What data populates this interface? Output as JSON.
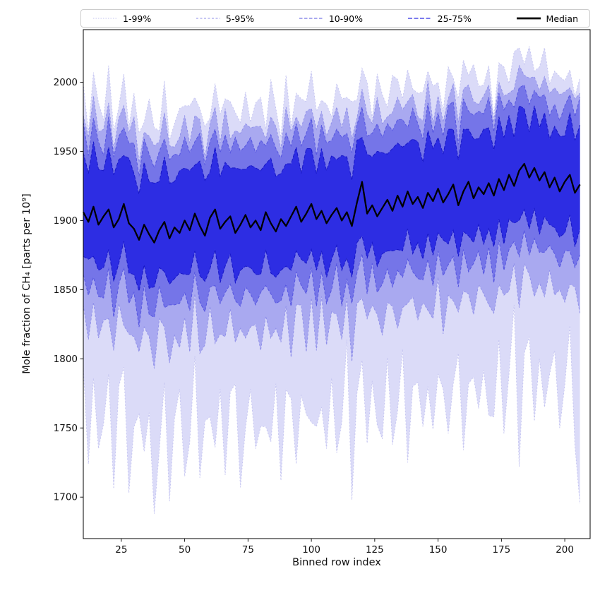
{
  "chart_data": {
    "type": "area",
    "title": "",
    "xlabel": "Binned row index",
    "ylabel": "Mole fraction of CH₄ [parts per 10⁹]",
    "xlim": [
      10,
      210
    ],
    "ylim": [
      1670,
      2038
    ],
    "x_ticks": [
      25,
      50,
      75,
      100,
      125,
      150,
      175,
      200
    ],
    "y_ticks": [
      1700,
      1750,
      1800,
      1850,
      1900,
      1950,
      2000
    ],
    "grid": false,
    "legend": {
      "position": "top",
      "items": [
        {
          "label": "1-99%",
          "color": "#c3c3f0",
          "dash": "1.5 2",
          "width": 1,
          "icon": "percentile-1-99-line-sample-icon"
        },
        {
          "label": "5-95%",
          "color": "#8f8fe9",
          "dash": "3 2.5",
          "width": 1,
          "icon": "percentile-5-95-line-sample-icon"
        },
        {
          "label": "10-90%",
          "color": "#5656e0",
          "dash": "4.5 2.5",
          "width": 1.1,
          "icon": "percentile-10-90-line-sample-icon"
        },
        {
          "label": "25-75%",
          "color": "#2d2de3",
          "dash": "6 2.5",
          "width": 1.2,
          "icon": "percentile-25-75-line-sample-icon"
        },
        {
          "label": "Median",
          "color": "#000000",
          "dash": "",
          "width": 2.8,
          "icon": "median-line-sample-icon"
        }
      ]
    },
    "bands": [
      {
        "label": "1-99%",
        "lower": "p1",
        "upper": "p99",
        "fill": "#dbdbf8",
        "edge": "#c3c3f0",
        "dash": "2 2.5",
        "edge_width": 0.9
      },
      {
        "label": "5-95%",
        "lower": "p5",
        "upper": "p95",
        "fill": "#a9a9f0",
        "edge": "#8f8fe9",
        "dash": "3 2.5",
        "edge_width": 0.9
      },
      {
        "label": "10-90%",
        "lower": "p10",
        "upper": "p90",
        "fill": "#7575e8",
        "edge": "#5656e0",
        "dash": "4 2.5",
        "edge_width": 1
      },
      {
        "label": "25-75%",
        "lower": "p25",
        "upper": "p75",
        "fill": "#2d2de3",
        "edge": "#1717c8",
        "dash": "5 2.5",
        "edge_width": 1
      }
    ],
    "median_style": {
      "color": "#000000",
      "width": 2.3,
      "label": "Median"
    },
    "x": [
      10,
      12,
      14,
      16,
      18,
      20,
      22,
      24,
      26,
      28,
      30,
      32,
      34,
      36,
      38,
      40,
      42,
      44,
      46,
      48,
      50,
      52,
      54,
      56,
      58,
      60,
      62,
      64,
      66,
      68,
      70,
      72,
      74,
      76,
      78,
      80,
      82,
      84,
      86,
      88,
      90,
      92,
      94,
      96,
      98,
      100,
      102,
      104,
      106,
      108,
      110,
      112,
      114,
      116,
      118,
      120,
      122,
      124,
      126,
      128,
      130,
      132,
      134,
      136,
      138,
      140,
      142,
      144,
      146,
      148,
      150,
      152,
      154,
      156,
      158,
      160,
      162,
      164,
      166,
      168,
      170,
      172,
      174,
      176,
      178,
      180,
      182,
      184,
      186,
      188,
      190,
      192,
      194,
      196,
      198,
      200,
      202,
      204,
      206
    ],
    "series": {
      "median": [
        1906,
        1899,
        1910,
        1897,
        1903,
        1908,
        1895,
        1901,
        1912,
        1898,
        1894,
        1886,
        1897,
        1890,
        1884,
        1893,
        1899,
        1887,
        1895,
        1891,
        1900,
        1893,
        1905,
        1896,
        1889,
        1902,
        1908,
        1894,
        1899,
        1903,
        1891,
        1897,
        1904,
        1895,
        1900,
        1893,
        1906,
        1898,
        1892,
        1901,
        1896,
        1903,
        1910,
        1899,
        1905,
        1912,
        1901,
        1907,
        1898,
        1904,
        1909,
        1900,
        1906,
        1896,
        1913,
        1928,
        1905,
        1911,
        1903,
        1909,
        1915,
        1907,
        1918,
        1910,
        1921,
        1912,
        1917,
        1909,
        1920,
        1914,
        1923,
        1913,
        1919,
        1926,
        1911,
        1921,
        1928,
        1916,
        1924,
        1919,
        1927,
        1918,
        1930,
        1922,
        1933,
        1925,
        1936,
        1941,
        1931,
        1938,
        1929,
        1935,
        1924,
        1931,
        1921,
        1928,
        1933,
        1920,
        1926
      ],
      "p75": [
        1949,
        1934,
        1957,
        1937,
        1936,
        1953,
        1933,
        1944,
        1947,
        1945,
        1934,
        1919,
        1942,
        1928,
        1927,
        1928,
        1946,
        1927,
        1928,
        1936,
        1938,
        1936,
        1940,
        1943,
        1929,
        1935,
        1953,
        1932,
        1942,
        1938,
        1938,
        1937,
        1937,
        1940,
        1938,
        1936,
        1941,
        1945,
        1932,
        1934,
        1941,
        1941,
        1953,
        1934,
        1952,
        1952,
        1934,
        1952,
        1936,
        1947,
        1944,
        1947,
        1946,
        1929,
        1958,
        1960,
        1948,
        1946,
        1950,
        1949,
        1948,
        1952,
        1956,
        1953,
        1956,
        1959,
        1957,
        1942,
        1965,
        1952,
        1960,
        1948,
        1966,
        1966,
        1944,
        1966,
        1966,
        1959,
        1959,
        1966,
        1967,
        1951,
        1975,
        1960,
        1976,
        1960,
        1983,
        1981,
        1964,
        1983,
        1967,
        1978,
        1959,
        1968,
        1961,
        1961,
        1978,
        1958,
        1969
      ],
      "p90": [
        1971,
        1947,
        1974,
        1957,
        1947,
        1975,
        1946,
        1961,
        1967,
        1956,
        1956,
        1932,
        1959,
        1948,
        1938,
        1950,
        1959,
        1944,
        1948,
        1947,
        1960,
        1949,
        1957,
        1963,
        1940,
        1957,
        1966,
        1949,
        1962,
        1949,
        1960,
        1950,
        1954,
        1960,
        1949,
        1958,
        1954,
        1962,
        1952,
        1945,
        1963,
        1954,
        1970,
        1954,
        1963,
        1974,
        1947,
        1969,
        1956,
        1958,
        1966,
        1960,
        1963,
        1949,
        1969,
        1982,
        1961,
        1963,
        1970,
        1960,
        1970,
        1965,
        1973,
        1973,
        1967,
        1981,
        1970,
        1959,
        1985,
        1963,
        1978,
        1961,
        1983,
        1986,
        1955,
        1988,
        1979,
        1976,
        1979,
        1977,
        1989,
        1964,
        1992,
        1980,
        1987,
        1982,
        1996,
        1998,
        1984,
        1994,
        1989,
        1991,
        1976,
        1984,
        1972,
        1983,
        1991,
        1975,
        1989
      ],
      "p95": [
        1976,
        1960,
        1990,
        1964,
        1966,
        1985,
        1951,
        1974,
        1983,
        1963,
        1975,
        1942,
        1964,
        1961,
        1954,
        1957,
        1978,
        1954,
        1953,
        1960,
        1976,
        1956,
        1976,
        1973,
        1945,
        1970,
        1982,
        1956,
        1981,
        1959,
        1965,
        1963,
        1970,
        1967,
        1968,
        1968,
        1959,
        1975,
        1968,
        1952,
        1982,
        1964,
        1975,
        1967,
        1979,
        1981,
        1966,
        1979,
        1961,
        1971,
        1982,
        1967,
        1982,
        1959,
        1974,
        1995,
        1977,
        1970,
        1989,
        1970,
        1975,
        1978,
        1989,
        1980,
        1986,
        1991,
        1975,
        1972,
        2001,
        1970,
        1990,
        1971,
        1988,
        1999,
        1971,
        1995,
        1998,
        1986,
        1984,
        1990,
        1998,
        1971,
        2000,
        1990,
        1992,
        1995,
        2012,
        2005,
        2003,
        2004,
        1994,
        2004,
        1992,
        1996,
        1991,
        1993,
        1996,
        1988,
        1992
      ],
      "p99": [
        1999,
        1964,
        2007,
        1985,
        1973,
        2012,
        1964,
        1982,
        2006,
        1967,
        1992,
        1963,
        1971,
        1988,
        1967,
        1965,
        2001,
        1958,
        1970,
        1981,
        1983,
        1983,
        1989,
        1981,
        1968,
        1974,
        1999,
        1977,
        1988,
        1986,
        1978,
        1971,
        1993,
        1971,
        1985,
        1989,
        1966,
        2002,
        1981,
        1960,
        2005,
        1968,
        1992,
        1988,
        1986,
        2008,
        1979,
        1987,
        1984,
        1975,
        1999,
        1988,
        1989,
        1986,
        1987,
        2010,
        2000,
        1974,
        2006,
        1991,
        1982,
        2005,
        2002,
        1988,
        2009,
        1995,
        1992,
        1993,
        2008,
        1997,
        2000,
        1979,
        2011,
        2003,
        1988,
        2016,
        2005,
        2013,
        1997,
        1998,
        2012,
        1975,
        2014,
        2011,
        1999,
        2022,
        2025,
        2013,
        2026,
        2008,
        2011,
        2025,
        1999,
        2008,
        2004,
        2001,
        2009,
        1990,
        2003
      ],
      "p25": [
        1874,
        1872,
        1874,
        1864,
        1866,
        1879,
        1856,
        1869,
        1885,
        1862,
        1861,
        1849,
        1868,
        1851,
        1852,
        1866,
        1863,
        1854,
        1858,
        1862,
        1861,
        1861,
        1878,
        1860,
        1856,
        1865,
        1879,
        1855,
        1867,
        1876,
        1855,
        1864,
        1867,
        1866,
        1861,
        1861,
        1879,
        1862,
        1859,
        1864,
        1867,
        1864,
        1878,
        1872,
        1869,
        1879,
        1864,
        1878,
        1859,
        1872,
        1882,
        1864,
        1873,
        1859,
        1884,
        1889,
        1873,
        1884,
        1867,
        1876,
        1878,
        1878,
        1879,
        1878,
        1894,
        1876,
        1884,
        1872,
        1891,
        1875,
        1891,
        1886,
        1883,
        1893,
        1874,
        1892,
        1889,
        1884,
        1897,
        1883,
        1894,
        1881,
        1901,
        1883,
        1901,
        1898,
        1900,
        1908,
        1894,
        1909,
        1890,
        1903,
        1897,
        1895,
        1888,
        1891,
        1904,
        1881,
        1894
      ],
      "p10": [
        1861,
        1846,
        1859,
        1845,
        1844,
        1866,
        1830,
        1854,
        1866,
        1840,
        1848,
        1823,
        1853,
        1832,
        1830,
        1853,
        1837,
        1839,
        1839,
        1840,
        1848,
        1835,
        1863,
        1841,
        1834,
        1852,
        1853,
        1840,
        1848,
        1854,
        1842,
        1838,
        1852,
        1847,
        1839,
        1848,
        1853,
        1847,
        1840,
        1842,
        1854,
        1838,
        1863,
        1853,
        1847,
        1866,
        1838,
        1863,
        1840,
        1850,
        1869,
        1838,
        1858,
        1840,
        1862,
        1876,
        1847,
        1869,
        1848,
        1854,
        1865,
        1852,
        1864,
        1859,
        1872,
        1863,
        1858,
        1857,
        1872,
        1853,
        1878,
        1860,
        1868,
        1874,
        1852,
        1879,
        1863,
        1869,
        1878,
        1861,
        1881,
        1855,
        1886,
        1864,
        1879,
        1885,
        1874,
        1893,
        1875,
        1887,
        1877,
        1877,
        1882,
        1876,
        1866,
        1878,
        1878,
        1866,
        1875
      ],
      "p5": [
        1839,
        1814,
        1841,
        1815,
        1828,
        1829,
        1806,
        1840,
        1824,
        1818,
        1816,
        1805,
        1823,
        1816,
        1793,
        1829,
        1823,
        1797,
        1817,
        1808,
        1830,
        1805,
        1847,
        1804,
        1810,
        1838,
        1811,
        1818,
        1816,
        1836,
        1812,
        1822,
        1815,
        1823,
        1825,
        1806,
        1831,
        1815,
        1822,
        1812,
        1838,
        1801,
        1839,
        1839,
        1805,
        1844,
        1806,
        1845,
        1810,
        1834,
        1832,
        1814,
        1844,
        1798,
        1840,
        1844,
        1829,
        1839,
        1832,
        1817,
        1841,
        1838,
        1822,
        1837,
        1840,
        1845,
        1828,
        1841,
        1835,
        1829,
        1859,
        1818,
        1846,
        1842,
        1834,
        1849,
        1847,
        1832,
        1854,
        1847,
        1839,
        1833,
        1854,
        1846,
        1849,
        1869,
        1837,
        1869,
        1861,
        1845,
        1855,
        1845,
        1864,
        1846,
        1850,
        1841,
        1854,
        1852,
        1833
      ],
      "p1": [
        1794,
        1724,
        1786,
        1735,
        1753,
        1789,
        1706,
        1780,
        1794,
        1703,
        1751,
        1760,
        1733,
        1761,
        1688,
        1734,
        1783,
        1697,
        1757,
        1778,
        1715,
        1740,
        1802,
        1714,
        1755,
        1758,
        1736,
        1778,
        1716,
        1776,
        1782,
        1707,
        1750,
        1778,
        1735,
        1751,
        1751,
        1740,
        1782,
        1712,
        1778,
        1771,
        1724,
        1774,
        1760,
        1754,
        1751,
        1765,
        1735,
        1786,
        1732,
        1754,
        1814,
        1698,
        1775,
        1799,
        1739,
        1784,
        1752,
        1742,
        1801,
        1738,
        1762,
        1807,
        1725,
        1780,
        1783,
        1751,
        1780,
        1749,
        1789,
        1778,
        1746,
        1782,
        1804,
        1734,
        1782,
        1787,
        1764,
        1792,
        1759,
        1758,
        1814,
        1746,
        1789,
        1839,
        1722,
        1804,
        1816,
        1755,
        1800,
        1765,
        1789,
        1806,
        1750,
        1781,
        1824,
        1737,
        1695
      ]
    }
  }
}
